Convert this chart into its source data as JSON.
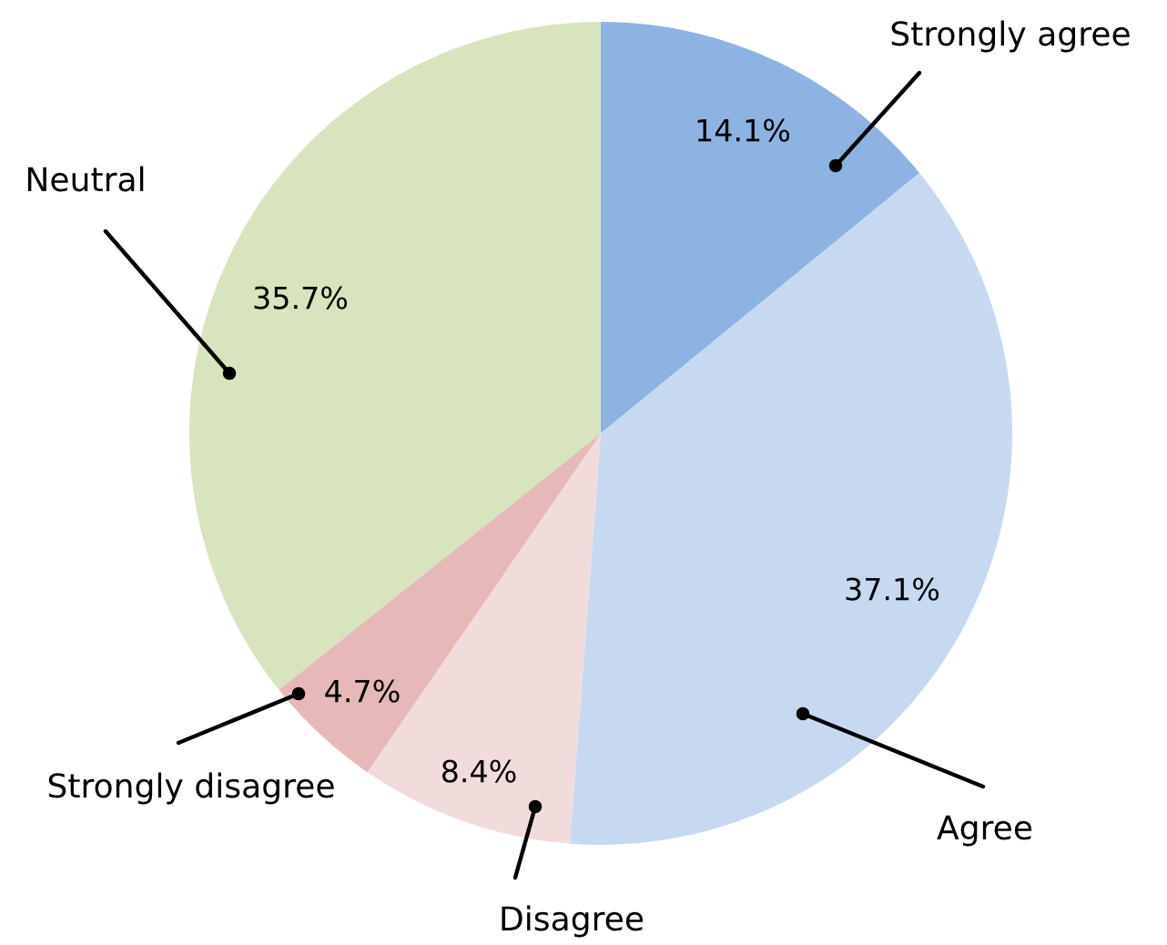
{
  "chart_data": {
    "type": "pie",
    "categories": [
      "Strongly agree",
      "Agree",
      "Disagree",
      "Strongly disagree",
      "Neutral"
    ],
    "values": [
      14.1,
      37.1,
      8.4,
      4.7,
      35.7
    ],
    "value_labels": [
      "14.1%",
      "37.1%",
      "8.4%",
      "4.7%",
      "35.7%"
    ],
    "colors": [
      "#8db3e2",
      "#c6d9f1",
      "#f2dcdb",
      "#e6b9b8",
      "#d7e4bd"
    ],
    "legend": false
  }
}
